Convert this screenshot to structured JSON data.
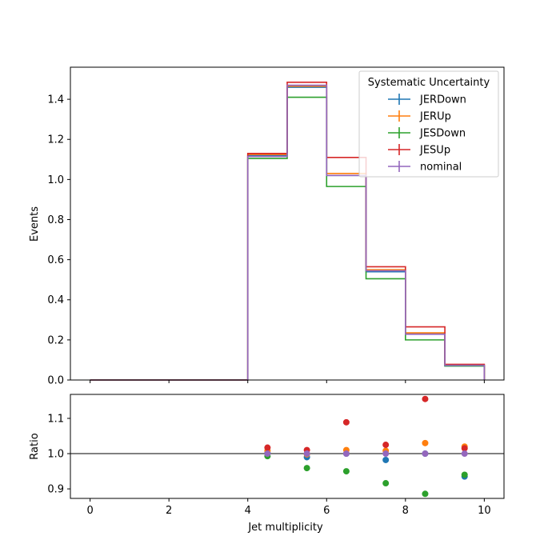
{
  "chart_data": [
    {
      "type": "line",
      "ylabel": "Events",
      "xlim": [
        -0.5,
        10.5
      ],
      "ylim": [
        0,
        1.56
      ],
      "y_ticks": [
        "0.0",
        "0.2",
        "0.4",
        "0.6",
        "0.8",
        "1.0",
        "1.2",
        "1.4"
      ],
      "y_tick_values": [
        0.0,
        0.2,
        0.4,
        0.6,
        0.8,
        1.0,
        1.2,
        1.4
      ],
      "bin_edges": [
        0,
        1,
        2,
        3,
        4,
        5,
        6,
        7,
        8,
        9,
        10
      ],
      "legend": {
        "title": "Systematic Uncertainty",
        "location": "top-right"
      },
      "series": [
        {
          "name": "JERDown",
          "color": "#1f77b4",
          "values": [
            0,
            0,
            0,
            0,
            1.12,
            1.46,
            1.02,
            0.54,
            0.23,
            0.07
          ]
        },
        {
          "name": "JERUp",
          "color": "#ff7f0e",
          "values": [
            0,
            0,
            0,
            0,
            1.125,
            1.465,
            1.03,
            0.55,
            0.235,
            0.075
          ]
        },
        {
          "name": "JESDown",
          "color": "#2ca02c",
          "values": [
            0,
            0,
            0,
            0,
            1.105,
            1.41,
            0.965,
            0.505,
            0.2,
            0.07
          ]
        },
        {
          "name": "JESUp",
          "color": "#d62728",
          "values": [
            0,
            0,
            0,
            0,
            1.13,
            1.485,
            1.11,
            0.565,
            0.265,
            0.078
          ]
        },
        {
          "name": "nominal",
          "color": "#9467bd",
          "values": [
            0,
            0,
            0,
            0,
            1.115,
            1.47,
            1.02,
            0.545,
            0.228,
            0.073
          ]
        }
      ]
    },
    {
      "type": "scatter",
      "xlabel": "Jet multiplicity",
      "ylabel": "Ratio",
      "xlim": [
        -0.5,
        10.5
      ],
      "ylim": [
        0.873,
        1.168
      ],
      "x_ticks": [
        "0",
        "2",
        "4",
        "6",
        "8",
        "10"
      ],
      "x_tick_values": [
        0,
        2,
        4,
        6,
        8,
        10
      ],
      "y_ticks": [
        "0.9",
        "1.0",
        "1.1"
      ],
      "y_tick_values": [
        0.9,
        1.0,
        1.1
      ],
      "reference_line": 1.0,
      "x": [
        4.5,
        5.5,
        6.5,
        7.5,
        8.5,
        9.5
      ],
      "series": [
        {
          "name": "JERDown",
          "color": "#1f77b4",
          "values": [
            1.002,
            0.99,
            1.0,
            0.982,
            1.0,
            0.935
          ]
        },
        {
          "name": "JERUp",
          "color": "#ff7f0e",
          "values": [
            1.008,
            0.998,
            1.01,
            1.008,
            1.03,
            1.02
          ]
        },
        {
          "name": "JESDown",
          "color": "#2ca02c",
          "values": [
            0.993,
            0.959,
            0.95,
            0.916,
            0.886,
            0.94
          ]
        },
        {
          "name": "JESUp",
          "color": "#d62728",
          "values": [
            1.017,
            1.01,
            1.089,
            1.025,
            1.155,
            1.015
          ]
        },
        {
          "name": "nominal",
          "color": "#9467bd",
          "values": [
            1.0,
            1.0,
            1.0,
            1.0,
            1.0,
            1.0
          ]
        }
      ]
    }
  ]
}
